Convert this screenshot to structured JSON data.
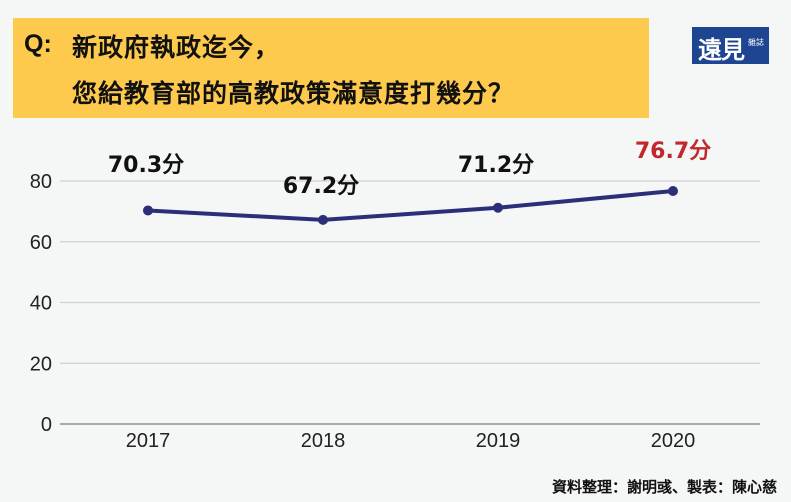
{
  "header": {
    "q_label": "Q:",
    "question_line1": "新政府執政迄今，",
    "question_line2": "您給教育部的高教政策滿意度打幾分？",
    "box_color": "#fdca4d"
  },
  "logo": {
    "main": "遠見",
    "sub": "雜誌",
    "color": "#1d4592"
  },
  "chart_data": {
    "type": "line",
    "title": "新政府執政迄今，您給教育部的高教政策滿意度打幾分？",
    "categories": [
      "2017",
      "2018",
      "2019",
      "2020"
    ],
    "series": [
      {
        "name": "高教政策滿意度",
        "values": [
          70.3,
          67.2,
          71.2,
          76.7
        ],
        "color": "#2b2f7a"
      }
    ],
    "data_labels": [
      "70.3分",
      "67.2分",
      "71.2分",
      "76.7分"
    ],
    "highlight_label_color": "#c0282e",
    "yticks": [
      "0",
      "20",
      "40",
      "60",
      "80"
    ],
    "xlabel": "",
    "ylabel": "",
    "ylim": [
      0,
      80
    ],
    "grid": true,
    "legend": "none"
  },
  "footer": {
    "credit": "資料整理：謝明彧、製表：陳心慈"
  }
}
